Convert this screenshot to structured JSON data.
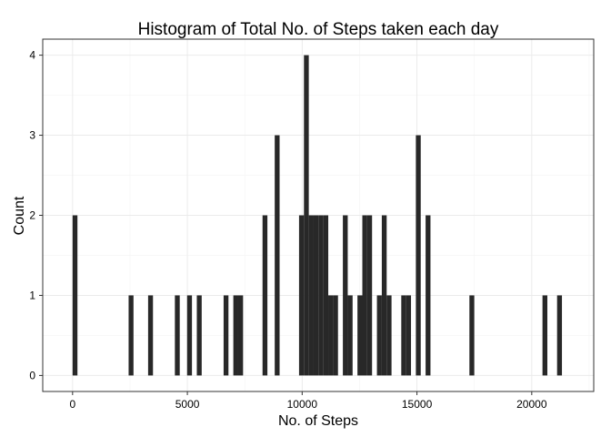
{
  "chart_data": {
    "type": "bar",
    "title": "Histogram of Total No. of Steps taken each day",
    "xlabel": "No. of Steps",
    "ylabel": "Count",
    "xlim": [
      -1300,
      22700
    ],
    "ylim": [
      -0.2,
      4.2
    ],
    "x_ticks": [
      0,
      5000,
      10000,
      15000,
      20000
    ],
    "x_tick_labels": [
      "0",
      "5000",
      "10000",
      "15000",
      "20000"
    ],
    "y_ticks": [
      0,
      1,
      2,
      3,
      4
    ],
    "y_tick_labels": [
      "0",
      "1",
      "2",
      "3",
      "4"
    ],
    "bin_width": 212,
    "bar_color": "#282828",
    "grid": true,
    "bins": [
      {
        "x": 106,
        "count": 2
      },
      {
        "x": 2547,
        "count": 1
      },
      {
        "x": 3396,
        "count": 1
      },
      {
        "x": 4562,
        "count": 1
      },
      {
        "x": 5094,
        "count": 1
      },
      {
        "x": 5518,
        "count": 1
      },
      {
        "x": 6684,
        "count": 1
      },
      {
        "x": 7108,
        "count": 1
      },
      {
        "x": 7320,
        "count": 1
      },
      {
        "x": 8380,
        "count": 2
      },
      {
        "x": 8911,
        "count": 3
      },
      {
        "x": 9971,
        "count": 2
      },
      {
        "x": 10183,
        "count": 4
      },
      {
        "x": 10395,
        "count": 2
      },
      {
        "x": 10607,
        "count": 2
      },
      {
        "x": 10819,
        "count": 2
      },
      {
        "x": 11031,
        "count": 2
      },
      {
        "x": 11243,
        "count": 1
      },
      {
        "x": 11455,
        "count": 1
      },
      {
        "x": 11879,
        "count": 2
      },
      {
        "x": 12091,
        "count": 1
      },
      {
        "x": 12515,
        "count": 1
      },
      {
        "x": 12727,
        "count": 2
      },
      {
        "x": 12939,
        "count": 2
      },
      {
        "x": 13363,
        "count": 1
      },
      {
        "x": 13575,
        "count": 2
      },
      {
        "x": 13787,
        "count": 1
      },
      {
        "x": 14423,
        "count": 1
      },
      {
        "x": 14635,
        "count": 1
      },
      {
        "x": 15059,
        "count": 3
      },
      {
        "x": 15483,
        "count": 2
      },
      {
        "x": 17391,
        "count": 1
      },
      {
        "x": 20574,
        "count": 1
      },
      {
        "x": 21210,
        "count": 1
      }
    ]
  }
}
